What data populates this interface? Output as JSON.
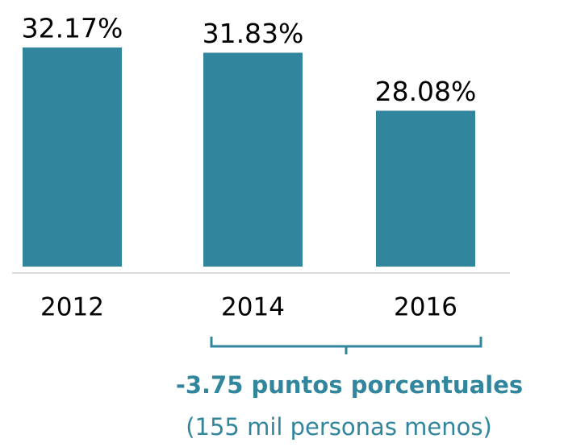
{
  "chart_data": {
    "type": "bar",
    "categories": [
      "2012",
      "2014",
      "2016"
    ],
    "values": [
      32.17,
      31.83,
      28.08
    ],
    "value_labels": [
      "32.17%",
      "31.83%",
      "28.08%"
    ],
    "color": "#31859c",
    "ylim": [
      18,
      33
    ],
    "annotations": [
      "-3.75 puntos porcentuales",
      "(155 mil personas menos)"
    ]
  }
}
